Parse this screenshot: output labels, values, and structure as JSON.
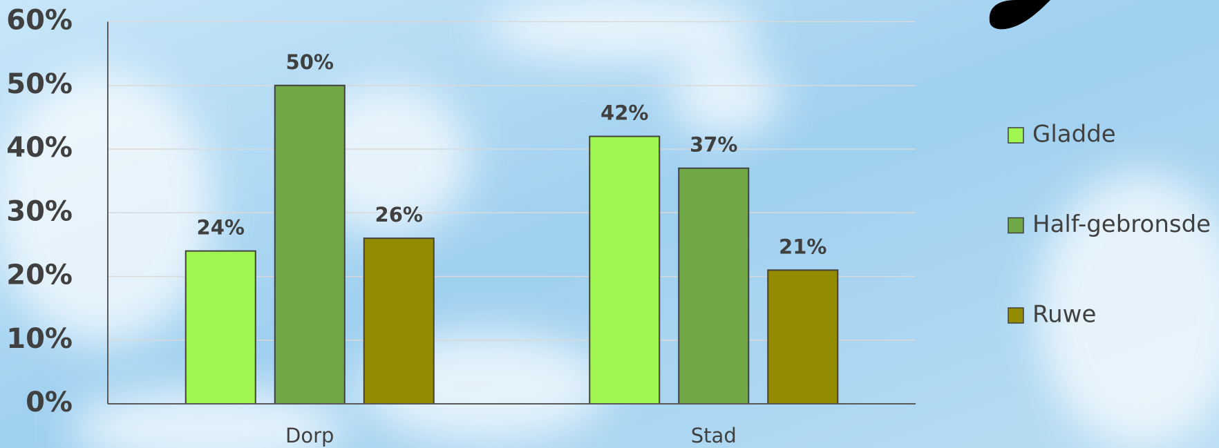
{
  "chart_data": {
    "type": "bar",
    "categories": [
      "Dorp",
      "Stad"
    ],
    "series": [
      {
        "name": "Gladde",
        "color": "#a0f550",
        "values": [
          24,
          42
        ],
        "value_labels": [
          "24%",
          "42%"
        ]
      },
      {
        "name": "Half-gebronsde",
        "color": "#70a845",
        "values": [
          50,
          37
        ],
        "value_labels": [
          "50%",
          "37%"
        ]
      },
      {
        "name": "Ruwe",
        "color": "#948c00",
        "values": [
          26,
          21
        ],
        "value_labels": [
          "26%",
          "21%"
        ]
      }
    ],
    "ylim": [
      0,
      60
    ],
    "yticks": [
      {
        "value": 0,
        "label": "0%"
      },
      {
        "value": 10,
        "label": "10%"
      },
      {
        "value": 20,
        "label": "20%"
      },
      {
        "value": 30,
        "label": "30%"
      },
      {
        "value": 40,
        "label": "40%"
      },
      {
        "value": 50,
        "label": "50%"
      },
      {
        "value": 60,
        "label": "60%"
      }
    ],
    "grid": true,
    "legend": "right"
  }
}
